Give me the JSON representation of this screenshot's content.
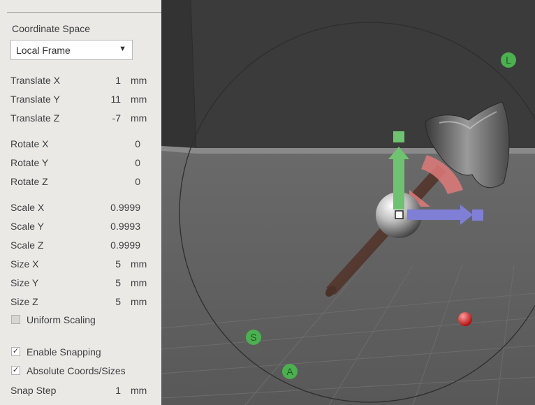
{
  "panel": {
    "coordinate_space_label": "Coordinate Space",
    "coordinate_space_value": "Local Frame",
    "dropdown_arrow": "▼",
    "translate": [
      {
        "label": "Translate X",
        "value": "1",
        "unit": "mm"
      },
      {
        "label": "Translate Y",
        "value": "11",
        "unit": "mm"
      },
      {
        "label": "Translate Z",
        "value": "-7",
        "unit": "mm"
      }
    ],
    "rotate": [
      {
        "label": "Rotate X",
        "value": "0"
      },
      {
        "label": "Rotate Y",
        "value": "0"
      },
      {
        "label": "Rotate Z",
        "value": "0"
      }
    ],
    "scale": [
      {
        "label": "Scale X",
        "value": "0.9999"
      },
      {
        "label": "Scale Y",
        "value": "0.9993"
      },
      {
        "label": "Scale Z",
        "value": "0.9999"
      }
    ],
    "size": [
      {
        "label": "Size X",
        "value": "5",
        "unit": "mm"
      },
      {
        "label": "Size Y",
        "value": "5",
        "unit": "mm"
      },
      {
        "label": "Size Z",
        "value": "5",
        "unit": "mm"
      }
    ],
    "uniform_scaling": {
      "label": "Uniform Scaling",
      "checked": false
    },
    "enable_snapping": {
      "label": "Enable Snapping",
      "checked": true,
      "mark": "✓"
    },
    "absolute_coords": {
      "label": "Absolute Coords/Sizes",
      "checked": true,
      "mark": "✓"
    },
    "snap_step": {
      "label": "Snap Step",
      "value": "1",
      "unit": "mm"
    }
  },
  "viewport": {
    "handle_labels": {
      "l": "L",
      "s": "S",
      "a": "A"
    },
    "colors": {
      "wall": "#3b3b3b",
      "floor": "#5f5f5f",
      "gizmo_y": "#6fc26f",
      "gizmo_x": "#7f7fd6",
      "gizmo_rot": "#e07a7a",
      "handle": "#4caf50",
      "handle_text": "#1e5a1e",
      "red_dot": "#e02a2a"
    },
    "icons": [
      "axe-model",
      "move-gizmo",
      "rotate-ring",
      "center-sphere",
      "red-sphere-marker"
    ]
  }
}
